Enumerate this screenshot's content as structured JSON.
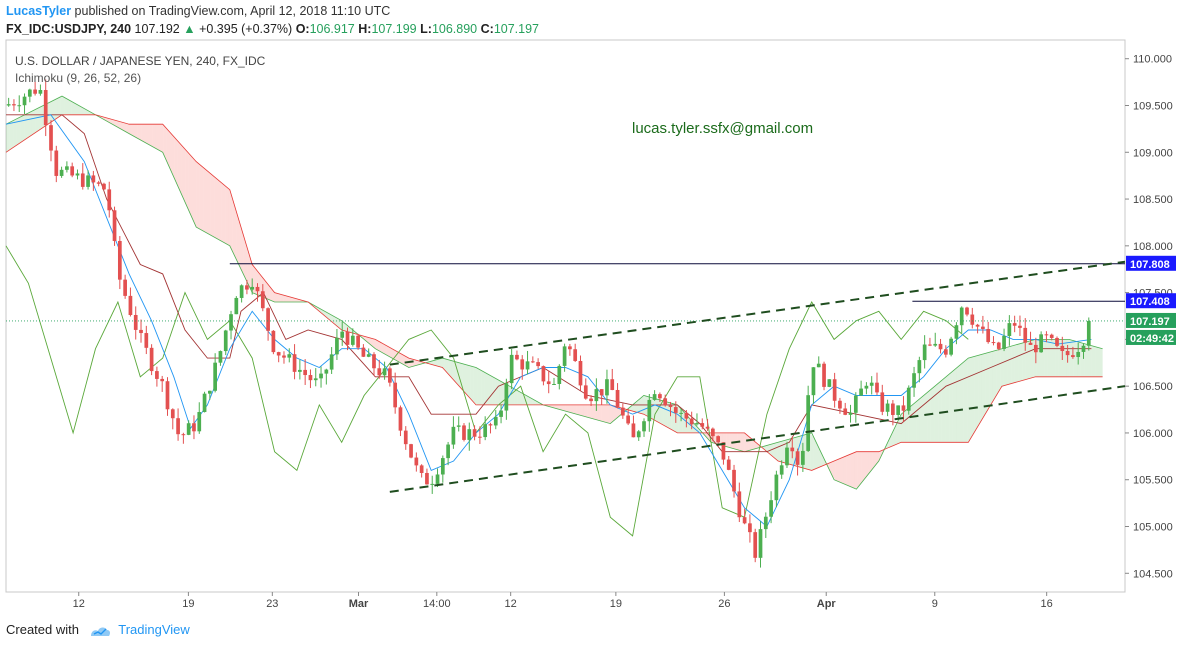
{
  "header": {
    "author": "LucasTyler",
    "published_text": " published on TradingView.com, April 12, 2018 11:10 UTC",
    "symbol": "FX_IDC:USDJPY, 240",
    "last": "107.192",
    "change_arrow": "▲",
    "change": "+0.395 (+0.37%)",
    "o_label": "O:",
    "o_value": "106.917",
    "h_label": "H:",
    "h_value": "107.199",
    "l_label": "L:",
    "l_value": "106.890",
    "c_label": "C:",
    "c_value": "107.197"
  },
  "chart_data": {
    "type": "candlestick",
    "title": "U.S. DOLLAR / JAPANESE YEN, 240, FX_IDC",
    "indicator": "Ichimoku (9, 26, 52, 26)",
    "watermark": "lucas.tyler.ssfx@gmail.com",
    "ylim": [
      104.3,
      110.2
    ],
    "y_ticks": [
      "110.000",
      "109.500",
      "109.000",
      "108.500",
      "108.000",
      "107.500",
      "107.000",
      "106.500",
      "106.000",
      "105.500",
      "105.000",
      "104.500"
    ],
    "x_ticks": [
      "12",
      "19",
      "23",
      "Mar",
      "14:00",
      "12",
      "19",
      "26",
      "Apr",
      "9",
      "16"
    ],
    "x_tick_pos": [
      0.065,
      0.163,
      0.238,
      0.315,
      0.385,
      0.451,
      0.545,
      0.642,
      0.733,
      0.83,
      0.93
    ],
    "horizontal_levels": [
      {
        "value": 107.808,
        "label": "107.808",
        "color": "#1a1aff",
        "start": 0.2
      },
      {
        "value": 107.408,
        "label": "107.408",
        "color": "#1a1aff",
        "start": 0.81
      }
    ],
    "current_price": {
      "value": 107.197,
      "label": "107.197",
      "countdown": "02:49:42",
      "color": "#26a05c"
    },
    "trendlines": [
      {
        "x1": 0.343,
        "y1": 106.73,
        "x2": 1.0,
        "y2": 107.83
      },
      {
        "x1": 0.343,
        "y1": 105.37,
        "x2": 1.0,
        "y2": 106.5
      }
    ],
    "candle_count": 205,
    "price_path": [
      [
        0.0,
        109.5
      ],
      [
        0.03,
        109.7
      ],
      [
        0.045,
        108.8
      ],
      [
        0.07,
        108.7
      ],
      [
        0.09,
        108.6
      ],
      [
        0.1,
        107.7
      ],
      [
        0.12,
        107.0
      ],
      [
        0.14,
        106.5
      ],
      [
        0.155,
        105.95
      ],
      [
        0.17,
        106.1
      ],
      [
        0.19,
        106.8
      ],
      [
        0.205,
        107.5
      ],
      [
        0.22,
        107.65
      ],
      [
        0.24,
        106.9
      ],
      [
        0.26,
        106.7
      ],
      [
        0.28,
        106.5
      ],
      [
        0.3,
        107.1
      ],
      [
        0.32,
        106.8
      ],
      [
        0.34,
        106.6
      ],
      [
        0.355,
        106.0
      ],
      [
        0.37,
        105.5
      ],
      [
        0.38,
        105.5
      ],
      [
        0.4,
        106.0
      ],
      [
        0.42,
        106.0
      ],
      [
        0.44,
        106.1
      ],
      [
        0.45,
        106.8
      ],
      [
        0.47,
        106.7
      ],
      [
        0.49,
        106.5
      ],
      [
        0.5,
        107.0
      ],
      [
        0.52,
        106.4
      ],
      [
        0.54,
        106.5
      ],
      [
        0.56,
        105.9
      ],
      [
        0.58,
        106.5
      ],
      [
        0.6,
        106.2
      ],
      [
        0.62,
        106.1
      ],
      [
        0.64,
        105.8
      ],
      [
        0.66,
        105.0
      ],
      [
        0.67,
        104.7
      ],
      [
        0.685,
        105.4
      ],
      [
        0.7,
        106.0
      ],
      [
        0.71,
        105.6
      ],
      [
        0.72,
        106.8
      ],
      [
        0.74,
        106.4
      ],
      [
        0.755,
        106.2
      ],
      [
        0.77,
        106.6
      ],
      [
        0.78,
        106.3
      ],
      [
        0.8,
        106.2
      ],
      [
        0.82,
        106.9
      ],
      [
        0.84,
        106.9
      ],
      [
        0.855,
        107.4
      ],
      [
        0.87,
        107.1
      ],
      [
        0.885,
        106.85
      ],
      [
        0.9,
        107.2
      ],
      [
        0.915,
        106.9
      ],
      [
        0.93,
        107.0
      ],
      [
        0.945,
        106.8
      ],
      [
        0.96,
        106.95
      ],
      [
        0.97,
        107.197
      ]
    ],
    "tenkan_path": [
      [
        0.0,
        109.3
      ],
      [
        0.04,
        109.4
      ],
      [
        0.07,
        108.9
      ],
      [
        0.09,
        108.3
      ],
      [
        0.11,
        107.7
      ],
      [
        0.13,
        107.2
      ],
      [
        0.15,
        106.6
      ],
      [
        0.165,
        106.05
      ],
      [
        0.18,
        106.3
      ],
      [
        0.2,
        106.9
      ],
      [
        0.22,
        107.3
      ],
      [
        0.24,
        107.0
      ],
      [
        0.26,
        106.8
      ],
      [
        0.28,
        106.7
      ],
      [
        0.3,
        106.9
      ],
      [
        0.32,
        106.9
      ],
      [
        0.34,
        106.7
      ],
      [
        0.36,
        106.2
      ],
      [
        0.38,
        105.6
      ],
      [
        0.4,
        105.7
      ],
      [
        0.42,
        106.0
      ],
      [
        0.44,
        106.2
      ],
      [
        0.46,
        106.6
      ],
      [
        0.48,
        106.7
      ],
      [
        0.5,
        106.7
      ],
      [
        0.52,
        106.6
      ],
      [
        0.54,
        106.3
      ],
      [
        0.56,
        106.2
      ],
      [
        0.58,
        106.3
      ],
      [
        0.6,
        106.2
      ],
      [
        0.62,
        106.0
      ],
      [
        0.64,
        105.6
      ],
      [
        0.66,
        105.2
      ],
      [
        0.68,
        105.0
      ],
      [
        0.7,
        105.5
      ],
      [
        0.72,
        106.3
      ],
      [
        0.74,
        106.5
      ],
      [
        0.76,
        106.4
      ],
      [
        0.78,
        106.4
      ],
      [
        0.8,
        106.4
      ],
      [
        0.82,
        106.6
      ],
      [
        0.84,
        106.9
      ],
      [
        0.86,
        107.1
      ],
      [
        0.88,
        107.1
      ],
      [
        0.9,
        107.0
      ],
      [
        0.92,
        107.0
      ],
      [
        0.94,
        106.95
      ],
      [
        0.97,
        107.0
      ]
    ],
    "kijun_path": [
      [
        0.0,
        109.4
      ],
      [
        0.05,
        109.4
      ],
      [
        0.07,
        109.2
      ],
      [
        0.09,
        108.5
      ],
      [
        0.12,
        107.8
      ],
      [
        0.14,
        107.7
      ],
      [
        0.16,
        107.1
      ],
      [
        0.18,
        106.8
      ],
      [
        0.2,
        106.8
      ],
      [
        0.21,
        107.3
      ],
      [
        0.23,
        107.5
      ],
      [
        0.25,
        107.0
      ],
      [
        0.27,
        107.1
      ],
      [
        0.3,
        107.0
      ],
      [
        0.33,
        106.6
      ],
      [
        0.36,
        106.6
      ],
      [
        0.38,
        106.2
      ],
      [
        0.42,
        106.2
      ],
      [
        0.44,
        106.5
      ],
      [
        0.48,
        106.7
      ],
      [
        0.52,
        106.4
      ],
      [
        0.56,
        106.3
      ],
      [
        0.6,
        106.3
      ],
      [
        0.62,
        106.1
      ],
      [
        0.64,
        105.8
      ],
      [
        0.68,
        105.8
      ],
      [
        0.7,
        105.9
      ],
      [
        0.72,
        106.3
      ],
      [
        0.76,
        106.2
      ],
      [
        0.8,
        106.1
      ],
      [
        0.84,
        106.5
      ],
      [
        0.88,
        106.7
      ],
      [
        0.92,
        106.9
      ],
      [
        0.97,
        106.9
      ]
    ],
    "chikou_path": [
      [
        0.0,
        108.0
      ],
      [
        0.02,
        107.6
      ],
      [
        0.04,
        106.8
      ],
      [
        0.06,
        106.0
      ],
      [
        0.08,
        106.9
      ],
      [
        0.1,
        107.4
      ],
      [
        0.12,
        106.6
      ],
      [
        0.14,
        106.8
      ],
      [
        0.16,
        107.5
      ],
      [
        0.18,
        107.0
      ],
      [
        0.2,
        107.2
      ],
      [
        0.22,
        106.8
      ],
      [
        0.24,
        105.8
      ],
      [
        0.26,
        105.6
      ],
      [
        0.28,
        106.3
      ],
      [
        0.3,
        105.9
      ],
      [
        0.32,
        106.4
      ],
      [
        0.34,
        106.7
      ],
      [
        0.36,
        107.0
      ],
      [
        0.38,
        107.1
      ],
      [
        0.4,
        106.8
      ],
      [
        0.42,
        106.0
      ],
      [
        0.44,
        106.3
      ],
      [
        0.46,
        106.5
      ],
      [
        0.48,
        105.8
      ],
      [
        0.5,
        106.2
      ],
      [
        0.52,
        106.0
      ],
      [
        0.54,
        105.1
      ],
      [
        0.56,
        104.9
      ],
      [
        0.58,
        106.2
      ],
      [
        0.6,
        106.6
      ],
      [
        0.62,
        106.6
      ],
      [
        0.64,
        105.2
      ],
      [
        0.66,
        105.1
      ],
      [
        0.68,
        106.2
      ],
      [
        0.7,
        106.9
      ],
      [
        0.72,
        107.4
      ],
      [
        0.74,
        107.0
      ],
      [
        0.76,
        107.2
      ],
      [
        0.78,
        107.3
      ],
      [
        0.8,
        107.0
      ],
      [
        0.82,
        107.3
      ],
      [
        0.84,
        107.2
      ],
      [
        0.86,
        107.0
      ]
    ],
    "cloud_span_a": [
      [
        0.0,
        109.3
      ],
      [
        0.05,
        109.6
      ],
      [
        0.08,
        109.4
      ],
      [
        0.11,
        109.2
      ],
      [
        0.14,
        109.0
      ],
      [
        0.17,
        108.2
      ],
      [
        0.2,
        108.0
      ],
      [
        0.22,
        107.5
      ],
      [
        0.24,
        107.4
      ],
      [
        0.27,
        107.4
      ],
      [
        0.3,
        107.2
      ],
      [
        0.33,
        106.9
      ],
      [
        0.36,
        106.7
      ],
      [
        0.39,
        106.8
      ],
      [
        0.42,
        106.7
      ],
      [
        0.45,
        106.5
      ],
      [
        0.48,
        106.3
      ],
      [
        0.51,
        106.2
      ],
      [
        0.54,
        106.1
      ],
      [
        0.57,
        106.4
      ],
      [
        0.6,
        106.3
      ],
      [
        0.63,
        105.9
      ],
      [
        0.66,
        105.8
      ],
      [
        0.69,
        105.9
      ],
      [
        0.72,
        106.0
      ],
      [
        0.74,
        105.5
      ],
      [
        0.76,
        105.4
      ],
      [
        0.78,
        105.7
      ],
      [
        0.8,
        106.2
      ],
      [
        0.83,
        106.5
      ],
      [
        0.86,
        106.8
      ],
      [
        0.89,
        106.9
      ],
      [
        0.92,
        107.0
      ],
      [
        0.95,
        107.0
      ],
      [
        0.98,
        106.9
      ]
    ],
    "cloud_span_b": [
      [
        0.0,
        109.0
      ],
      [
        0.05,
        109.4
      ],
      [
        0.08,
        109.4
      ],
      [
        0.11,
        109.3
      ],
      [
        0.14,
        109.3
      ],
      [
        0.17,
        108.9
      ],
      [
        0.2,
        108.6
      ],
      [
        0.22,
        107.8
      ],
      [
        0.24,
        107.5
      ],
      [
        0.27,
        107.4
      ],
      [
        0.3,
        107.1
      ],
      [
        0.33,
        107.0
      ],
      [
        0.36,
        106.8
      ],
      [
        0.39,
        106.7
      ],
      [
        0.42,
        106.3
      ],
      [
        0.45,
        106.3
      ],
      [
        0.48,
        106.3
      ],
      [
        0.51,
        106.3
      ],
      [
        0.54,
        106.3
      ],
      [
        0.57,
        106.2
      ],
      [
        0.6,
        106.0
      ],
      [
        0.63,
        106.0
      ],
      [
        0.66,
        106.0
      ],
      [
        0.69,
        105.7
      ],
      [
        0.72,
        105.6
      ],
      [
        0.74,
        105.7
      ],
      [
        0.76,
        105.8
      ],
      [
        0.78,
        105.8
      ],
      [
        0.8,
        105.9
      ],
      [
        0.83,
        105.9
      ],
      [
        0.86,
        105.9
      ],
      [
        0.89,
        106.5
      ],
      [
        0.92,
        106.6
      ],
      [
        0.95,
        106.6
      ],
      [
        0.98,
        106.6
      ]
    ]
  },
  "footer": {
    "created_with": "Created with",
    "brand": "TradingView"
  }
}
